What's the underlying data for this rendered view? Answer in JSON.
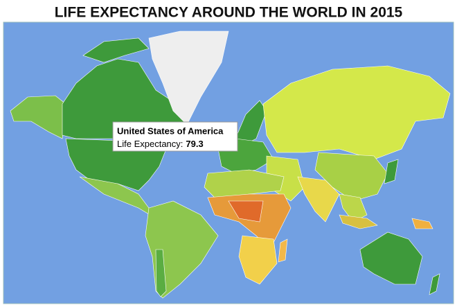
{
  "title": "LIFE EXPECTANCY AROUND THE WORLD IN 2015",
  "tooltip": {
    "country": "United States of America",
    "label": "Life Expectancy:",
    "value": 79.3
  }
}
